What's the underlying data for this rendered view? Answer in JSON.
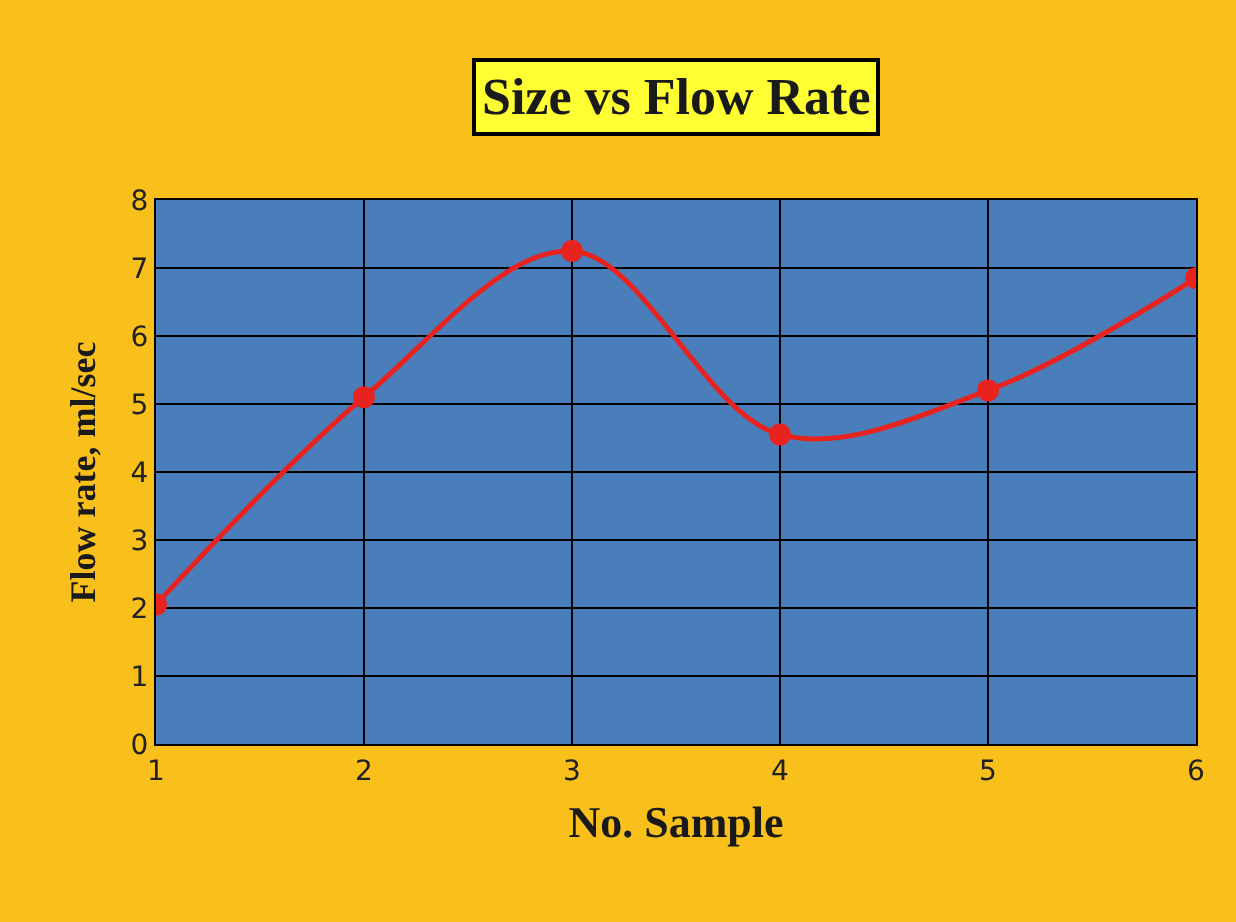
{
  "chart_data": {
    "type": "line",
    "title": "Size vs Flow Rate",
    "xlabel": "No. Sample",
    "ylabel": "Flow rate, ml/sec",
    "x": [
      1,
      2,
      3,
      4,
      5,
      6
    ],
    "series": [
      {
        "color": "#e8231f",
        "values": [
          2.05,
          5.1,
          7.25,
          4.55,
          5.2,
          6.85
        ]
      }
    ],
    "xlim": [
      1,
      6
    ],
    "xticks": [
      1,
      2,
      3,
      4,
      5,
      6
    ],
    "ylim": [
      0,
      8
    ],
    "yticks": [
      0,
      1,
      2,
      3,
      4,
      5,
      6,
      7,
      8
    ],
    "grid": true,
    "marker": "circle",
    "line_style": "solid",
    "legend": false
  }
}
